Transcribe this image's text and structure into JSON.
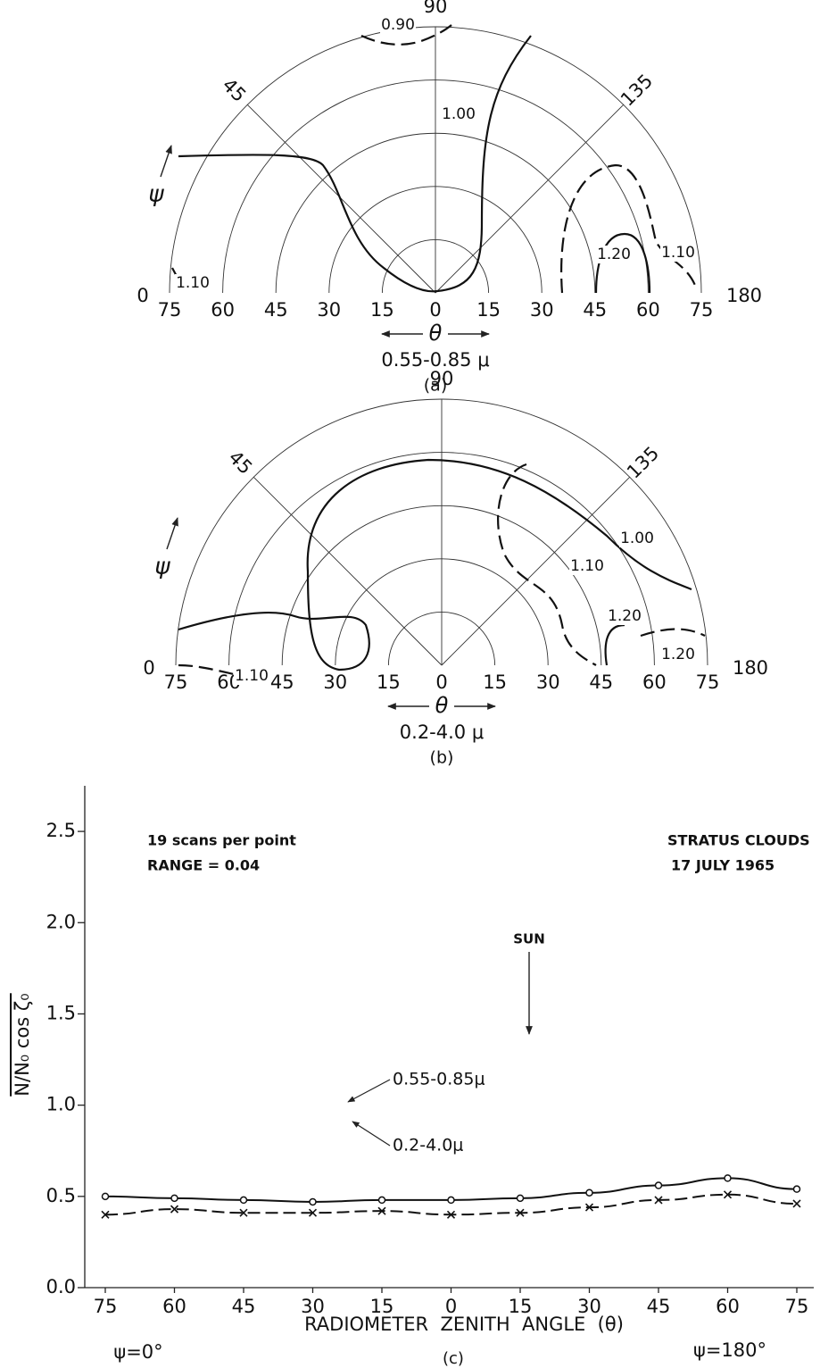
{
  "chart_data": [
    {
      "type": "polar",
      "angle_ticks": [
        0,
        45,
        90,
        135,
        180
      ],
      "rlim": [
        0,
        75
      ],
      "rticks": [
        0,
        15,
        30,
        45,
        60,
        75
      ],
      "angle_label": "ψ",
      "radius_label": "θ",
      "caption": "0.55-0.85 μ",
      "panel": "(a)",
      "contours": [
        {
          "value": 0.9,
          "label": "0.90",
          "style": "dashed"
        },
        {
          "value": 1,
          "label": "1.00",
          "style": "solid"
        },
        {
          "value": 1.1,
          "label": "1.10",
          "style": "dashed"
        },
        {
          "value": 1.2,
          "label": "1.20",
          "style": "solid"
        },
        {
          "value": 1.1,
          "label": "1.10",
          "style": "dashed"
        }
      ]
    },
    {
      "type": "polar",
      "angle_ticks": [
        0,
        45,
        90,
        135,
        180
      ],
      "rlim": [
        0,
        75
      ],
      "rticks": [
        0,
        15,
        30,
        45,
        60,
        75
      ],
      "angle_label": "ψ",
      "radius_label": "θ",
      "caption": "0.2-4.0 μ",
      "panel": "(b)",
      "contours": [
        {
          "value": 1,
          "label": "1.00",
          "style": "solid"
        },
        {
          "value": 1.1,
          "label": "1.10",
          "style": "dashed"
        },
        {
          "value": 1.2,
          "label": "1.20",
          "style": "dashed"
        },
        {
          "value": 1.2,
          "label": "1.20",
          "style": "solid"
        },
        {
          "value": 1.1,
          "label": "1.10",
          "style": "dashed"
        }
      ]
    },
    {
      "type": "line",
      "categories": [
        75,
        60,
        45,
        30,
        15,
        0,
        15,
        30,
        45,
        60,
        75
      ],
      "series": [
        {
          "name": "0.55-0.85μ",
          "color": "#111",
          "marker": "circle",
          "line_style": "solid",
          "values": [
            0.5,
            0.49,
            0.48,
            0.47,
            0.48,
            0.48,
            0.49,
            0.52,
            0.56,
            0.6,
            0.54
          ]
        },
        {
          "name": "0.2-4.0μ",
          "color": "#111",
          "marker": "cross",
          "line_style": "dashed",
          "values": [
            0.4,
            0.43,
            0.41,
            0.41,
            0.42,
            0.4,
            0.41,
            0.44,
            0.48,
            0.51,
            0.46
          ]
        }
      ],
      "ylim": [
        0,
        2.75
      ],
      "yticks": [
        {
          "value": 0,
          "label": "0.0"
        },
        0.5,
        {
          "value": 1,
          "label": "1.0"
        },
        1.5,
        {
          "value": 2,
          "label": "2.0"
        },
        2.5
      ],
      "y_label": "N/N₀ cos ζ₀",
      "x_label": "RADIOMETER  ZENITH  ANGLE  (θ)",
      "annotations": [
        "19 scans per point",
        "RANGE = 0.04",
        "STRATUS CLOUDS",
        "17 JULY 1965",
        "SUN",
        "ψ=0°",
        "ψ=180°"
      ],
      "panel": "(c)"
    }
  ]
}
